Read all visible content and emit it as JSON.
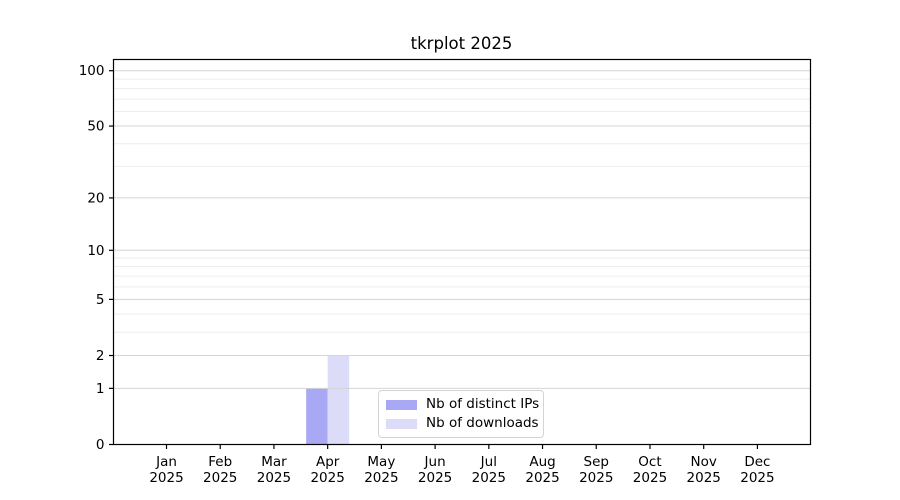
{
  "title": "tkrplot 2025",
  "colors": {
    "bar_ips": "#a8a8f5",
    "bar_downloads": "#dcdcf9",
    "grid_major": "#d4d4d4",
    "grid_minor": "#ededed",
    "axis": "#000000",
    "text": "#000000",
    "legend_border": "#d4d4d4",
    "background": "#ffffff"
  },
  "legend": {
    "items": [
      {
        "label": "Nb of distinct IPs",
        "color_key": "bar_ips"
      },
      {
        "label": "Nb of downloads",
        "color_key": "bar_downloads"
      }
    ]
  },
  "chart_data": {
    "type": "bar",
    "title": "tkrplot 2025",
    "categories": [
      "Jan 2025",
      "Feb 2025",
      "Mar 2025",
      "Apr 2025",
      "May 2025",
      "Jun 2025",
      "Jul 2025",
      "Aug 2025",
      "Sep 2025",
      "Oct 2025",
      "Nov 2025",
      "Dec 2025"
    ],
    "series": [
      {
        "name": "Nb of distinct IPs",
        "values": [
          0,
          0,
          0,
          1,
          0,
          0,
          0,
          0,
          0,
          0,
          0,
          0
        ]
      },
      {
        "name": "Nb of downloads",
        "values": [
          0,
          0,
          0,
          2,
          0,
          0,
          0,
          0,
          0,
          0,
          0,
          0
        ]
      }
    ],
    "xlabel": "",
    "ylabel": "",
    "yscale": "log1p",
    "ylim": [
      0,
      115
    ],
    "yticks": [
      0,
      1,
      2,
      5,
      10,
      20,
      50,
      100
    ],
    "yticks_minor": [
      3,
      4,
      6,
      7,
      8,
      9,
      30,
      40,
      60,
      70,
      80,
      90
    ],
    "grid": "horizontal",
    "legend_position": "bottom-center"
  }
}
